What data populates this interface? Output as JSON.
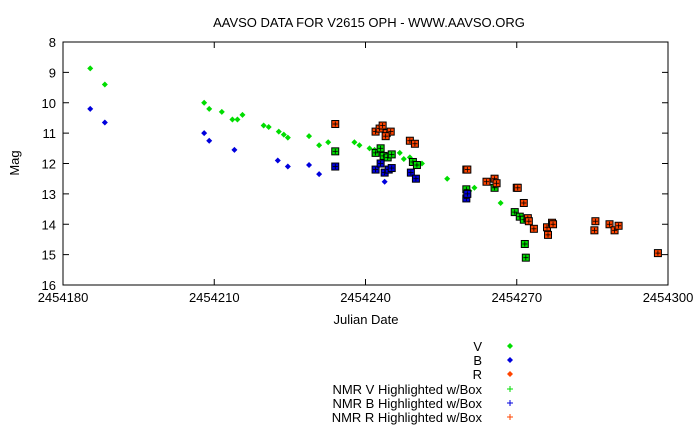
{
  "chart_data": {
    "type": "scatter",
    "title": "AAVSO DATA FOR V2615 OPH - WWW.AAVSO.ORG",
    "xlabel": "Julian Date",
    "ylabel": "Mag",
    "xlim": [
      2454180,
      2454300
    ],
    "ylim": [
      8,
      16
    ],
    "y_inverted": true,
    "grid": false,
    "x_ticks": [
      2454180,
      2454210,
      2454240,
      2454270,
      2454300
    ],
    "x_tick_labels": [
      "2454180",
      "2454210",
      "2454240",
      "2454270",
      "2454300"
    ],
    "y_ticks": [
      8,
      9,
      10,
      11,
      12,
      13,
      14,
      15,
      16
    ],
    "y_tick_labels": [
      "8",
      "9",
      "10",
      "11",
      "12",
      "13",
      "14",
      "15",
      "16"
    ],
    "legend_position": "bottom-right, below plot",
    "series": [
      {
        "name": "V",
        "marker": "diamond",
        "color": "#00dd00",
        "boxed": false,
        "points": [
          [
            2454185.4,
            8.87
          ],
          [
            2454188.3,
            9.4
          ],
          [
            2454208.0,
            10.0
          ],
          [
            2454209.0,
            10.2
          ],
          [
            2454211.5,
            10.3
          ],
          [
            2454213.6,
            10.55
          ],
          [
            2454214.6,
            10.55
          ],
          [
            2454215.6,
            10.4
          ],
          [
            2454219.8,
            10.75
          ],
          [
            2454220.8,
            10.8
          ],
          [
            2454222.8,
            10.95
          ],
          [
            2454223.8,
            11.05
          ],
          [
            2454224.6,
            11.15
          ],
          [
            2454228.8,
            11.1
          ],
          [
            2454230.8,
            11.4
          ],
          [
            2454232.6,
            11.3
          ],
          [
            2454237.8,
            11.3
          ],
          [
            2454238.8,
            11.4
          ],
          [
            2454240.8,
            11.5
          ],
          [
            2454241.8,
            11.55
          ],
          [
            2454246.8,
            11.65
          ],
          [
            2454247.6,
            11.85
          ],
          [
            2454248.8,
            11.8
          ],
          [
            2454251.2,
            12.0
          ],
          [
            2454256.2,
            12.5
          ],
          [
            2454260.6,
            12.9
          ],
          [
            2454261.6,
            12.8
          ],
          [
            2454266.8,
            13.3
          ]
        ]
      },
      {
        "name": "B",
        "marker": "diamond",
        "color": "#0000dd",
        "boxed": false,
        "points": [
          [
            2454185.4,
            10.2
          ],
          [
            2454188.3,
            10.65
          ],
          [
            2454208.0,
            11.0
          ],
          [
            2454209.0,
            11.25
          ],
          [
            2454214.0,
            11.55
          ],
          [
            2454222.6,
            11.9
          ],
          [
            2454224.6,
            12.1
          ],
          [
            2454228.8,
            12.05
          ],
          [
            2454230.8,
            12.35
          ],
          [
            2454243.8,
            12.6
          ]
        ]
      },
      {
        "name": "R",
        "marker": "diamond",
        "color": "#ff4400",
        "boxed": false,
        "points": []
      },
      {
        "name": "NMR V Highlighted w/Box",
        "marker": "box",
        "color": "#00dd00",
        "boxed": true,
        "points": [
          [
            2454234.0,
            11.6
          ],
          [
            2454242.0,
            11.65
          ],
          [
            2454243.0,
            11.5
          ],
          [
            2454243.6,
            11.75
          ],
          [
            2454244.4,
            11.8
          ],
          [
            2454245.2,
            11.7
          ],
          [
            2454249.4,
            11.95
          ],
          [
            2454250.2,
            12.05
          ],
          [
            2454260.0,
            12.85
          ],
          [
            2454265.6,
            12.8
          ],
          [
            2454269.6,
            13.6
          ],
          [
            2454270.6,
            13.75
          ],
          [
            2454271.4,
            13.85
          ],
          [
            2454271.6,
            14.65
          ],
          [
            2454271.8,
            15.1
          ]
        ]
      },
      {
        "name": "NMR B Highlighted w/Box",
        "marker": "box",
        "color": "#0000dd",
        "boxed": true,
        "points": [
          [
            2454234.0,
            12.1
          ],
          [
            2454242.0,
            12.2
          ],
          [
            2454243.0,
            12.0
          ],
          [
            2454243.8,
            12.3
          ],
          [
            2454244.6,
            12.2
          ],
          [
            2454245.2,
            12.15
          ],
          [
            2454249.0,
            12.3
          ],
          [
            2454250.0,
            12.5
          ],
          [
            2454260.0,
            13.15
          ],
          [
            2454260.2,
            13.0
          ]
        ]
      },
      {
        "name": "NMR R Highlighted w/Box",
        "marker": "box",
        "color": "#ff4400",
        "boxed": true,
        "points": [
          [
            2454234.0,
            10.7
          ],
          [
            2454242.0,
            10.95
          ],
          [
            2454242.8,
            10.85
          ],
          [
            2454243.4,
            10.75
          ],
          [
            2454244.2,
            11.0
          ],
          [
            2454245.0,
            10.95
          ],
          [
            2454244.0,
            11.1
          ],
          [
            2454248.8,
            11.25
          ],
          [
            2454249.8,
            11.35
          ],
          [
            2454260.0,
            12.2
          ],
          [
            2454260.2,
            12.2
          ],
          [
            2454264.0,
            12.6
          ],
          [
            2454265.6,
            12.5
          ],
          [
            2454266.0,
            12.65
          ],
          [
            2454270.0,
            12.8
          ],
          [
            2454270.2,
            12.8
          ],
          [
            2454271.4,
            13.3
          ],
          [
            2454272.2,
            13.8
          ],
          [
            2454272.4,
            13.9
          ],
          [
            2454273.4,
            14.15
          ],
          [
            2454276.0,
            14.1
          ],
          [
            2454276.2,
            14.35
          ],
          [
            2454277.0,
            13.95
          ],
          [
            2454277.2,
            14.0
          ],
          [
            2454285.6,
            13.9
          ],
          [
            2454285.4,
            14.2
          ],
          [
            2454288.4,
            14.0
          ],
          [
            2454289.4,
            14.2
          ],
          [
            2454290.2,
            14.05
          ],
          [
            2454298.0,
            14.95
          ]
        ]
      }
    ]
  }
}
